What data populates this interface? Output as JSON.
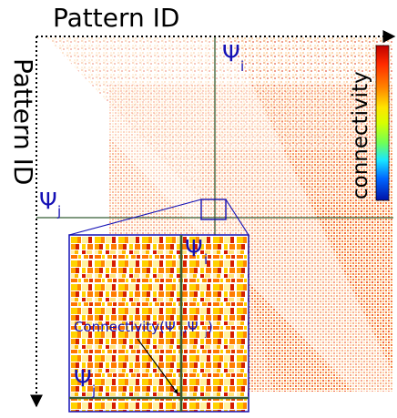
{
  "axes": {
    "x_label": "Pattern ID",
    "y_label": "Pattern ID"
  },
  "colorbar": {
    "label": "connectivity",
    "colors": [
      "#c00000",
      "#ff2b00",
      "#ff8a00",
      "#ffe400",
      "#d7ff00",
      "#6fff57",
      "#19e6ff",
      "#0066ff",
      "#0012a8"
    ]
  },
  "labels": {
    "psi_i": "Ψ",
    "psi_i_sub": "i",
    "psi_j": "Ψ",
    "psi_j_sub": "j",
    "zoom_psi_i": "Ψ",
    "zoom_psi_i_sub": "i",
    "zoom_psi_j": "Ψ",
    "zoom_psi_j_sub": "j",
    "connectivity_formula": "Connectivity(Ψ",
    "connectivity_formula_i": "i",
    "connectivity_formula_mid": ",Ψ",
    "connectivity_formula_j": "j",
    "connectivity_formula_end": ")"
  },
  "colors": {
    "axis": "#000000",
    "guide": "#355d35",
    "annotation": "#1410b5",
    "heat_light": "#ffd89a",
    "heat_medium": "#ff8a1d",
    "heat_strong": "#d51f00"
  }
}
